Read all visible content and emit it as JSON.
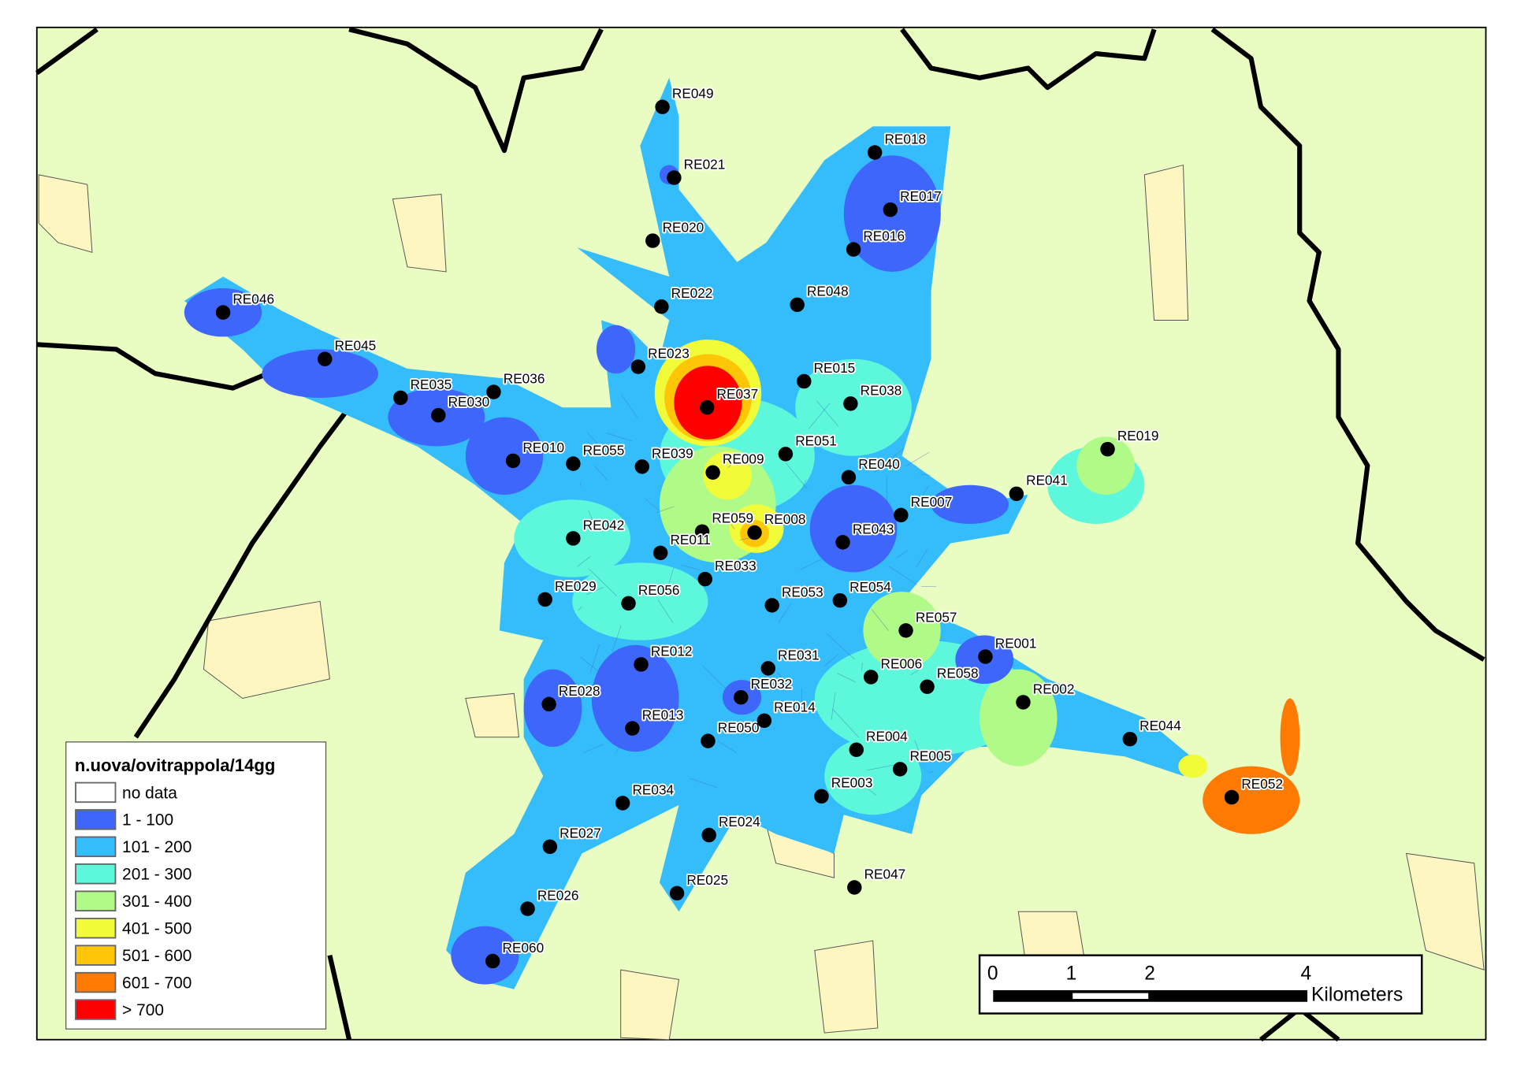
{
  "map": {
    "background_color": "#e9fcc2",
    "settlement_color": "#fdf6c0",
    "boundary_color": "#000000"
  },
  "legend": {
    "title": "n.uova/ovitrappola/14gg",
    "classes": [
      {
        "label": "no data",
        "color": "#ffffff"
      },
      {
        "label": "1 - 100",
        "color": "#3f66fb"
      },
      {
        "label": "101 - 200",
        "color": "#35bdfb"
      },
      {
        "label": "201 - 300",
        "color": "#5df8dc"
      },
      {
        "label": "301 - 400",
        "color": "#b0fb87"
      },
      {
        "label": "401 - 500",
        "color": "#f1fb37"
      },
      {
        "label": "501 - 600",
        "color": "#fec606"
      },
      {
        "label": "601 - 700",
        "color": "#fe7a02"
      },
      {
        "label": "> 700",
        "color": "#fe0000"
      }
    ]
  },
  "scale_bar": {
    "ticks": [
      "0",
      "1",
      "2",
      "4"
    ],
    "unit": "Kilometers"
  },
  "traps": [
    "RE049",
    "RE021",
    "RE020",
    "RE022",
    "RE023",
    "RE037",
    "RE018",
    "RE017",
    "RE016",
    "RE048",
    "RE015",
    "RE038",
    "RE046",
    "RE045",
    "RE035",
    "RE030",
    "RE036",
    "RE010",
    "RE055",
    "RE039",
    "RE009",
    "RE051",
    "RE040",
    "RE019",
    "RE041",
    "RE007",
    "RE043",
    "RE042",
    "RE059",
    "RE008",
    "RE011",
    "RE033",
    "RE029",
    "RE056",
    "RE053",
    "RE054",
    "RE057",
    "RE001",
    "RE012",
    "RE031",
    "RE006",
    "RE058",
    "RE002",
    "RE028",
    "RE032",
    "RE013",
    "RE050",
    "RE014",
    "RE004",
    "RE005",
    "RE044",
    "RE052",
    "RE034",
    "RE003",
    "RE024",
    "RE027",
    "RE025",
    "RE047",
    "RE026",
    "RE060"
  ]
}
